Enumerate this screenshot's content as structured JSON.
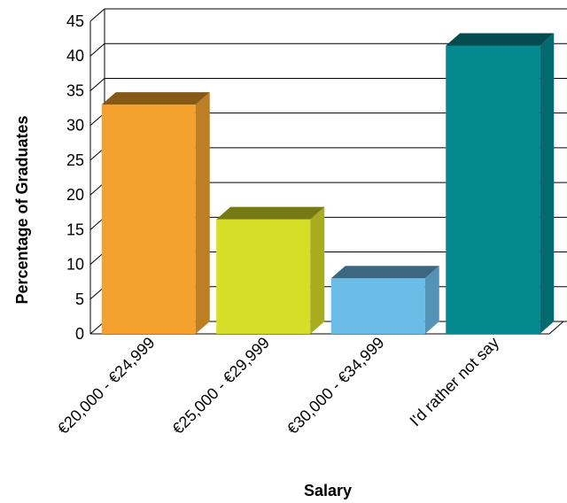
{
  "chart_data": {
    "type": "bar",
    "title": "",
    "xlabel": "Salary",
    "ylabel": "Percentage of Graduates",
    "ylim": [
      0,
      45
    ],
    "yticks": [
      0,
      5,
      10,
      15,
      20,
      25,
      30,
      35,
      40,
      45
    ],
    "categories": [
      "€20,000 - €24,999",
      "€25,000 - €29,999",
      "€30,000 - €34,999",
      "I'd rather not say"
    ],
    "values": [
      33,
      16.5,
      8,
      41.5
    ],
    "colors": [
      "#F4A22D",
      "#D6DE27",
      "#6BBDE8",
      "#06888F"
    ],
    "grid": true,
    "legend": "none",
    "style": "3d"
  }
}
